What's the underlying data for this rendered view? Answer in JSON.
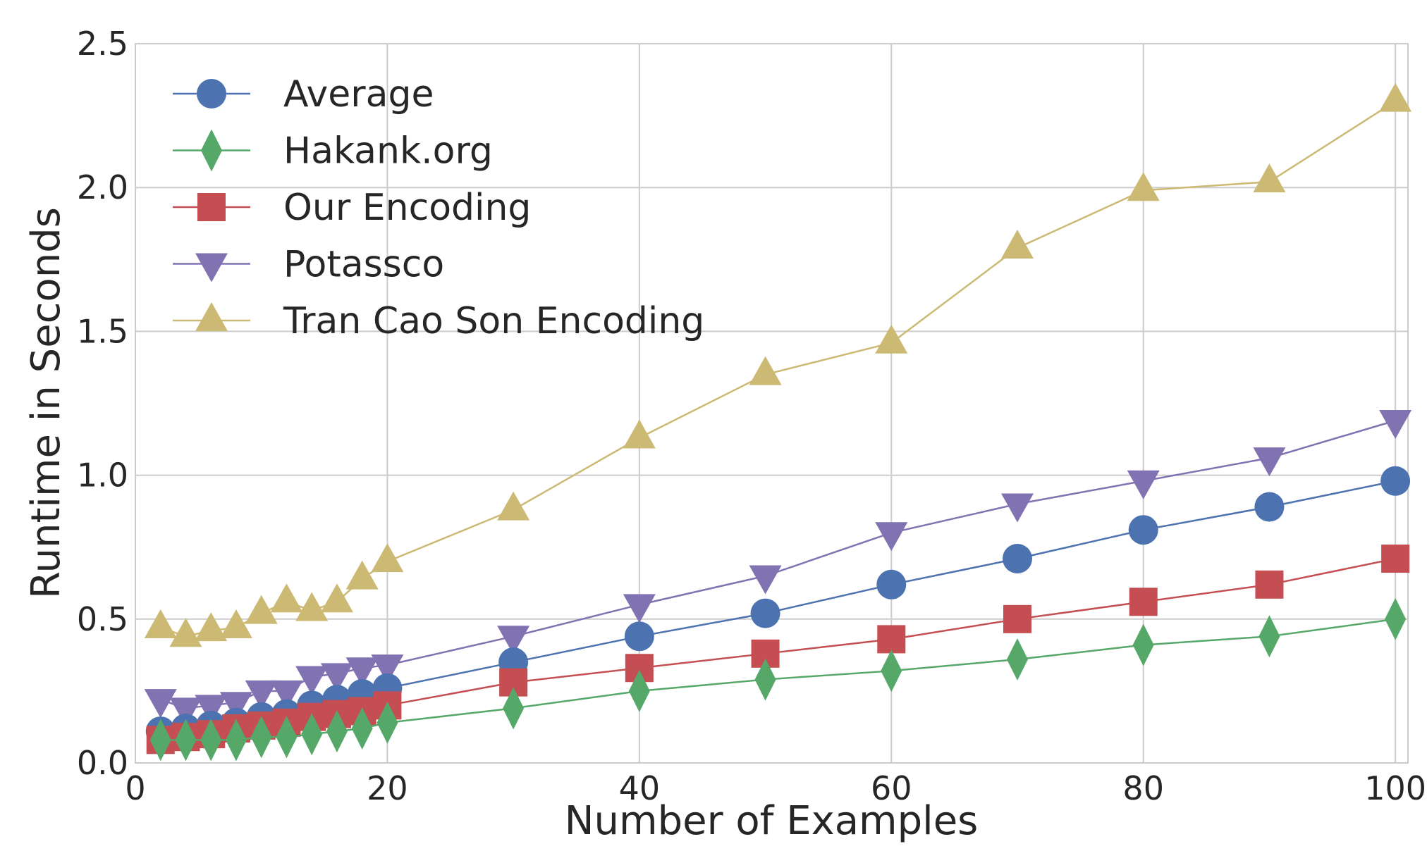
{
  "chart_data": {
    "type": "line",
    "title": "",
    "xlabel": "Number of Examples",
    "ylabel": "Runtime in Seconds",
    "xlim": [
      0,
      101
    ],
    "ylim": [
      0,
      2.5
    ],
    "xticks": [
      "0",
      "20",
      "40",
      "60",
      "80",
      "100"
    ],
    "xtick_values": [
      0,
      20,
      40,
      60,
      80,
      100
    ],
    "yticks": [
      "0.0",
      "0.5",
      "1.0",
      "1.5",
      "2.0",
      "2.5"
    ],
    "ytick_values": [
      0,
      0.5,
      1.0,
      1.5,
      2.0,
      2.5
    ],
    "grid": true,
    "legend_position": "top-left",
    "x": [
      2,
      4,
      6,
      8,
      10,
      12,
      14,
      16,
      18,
      20,
      30,
      40,
      50,
      60,
      70,
      80,
      90,
      100
    ],
    "series": [
      {
        "name": "Average",
        "marker": "circle",
        "color": "#4C72B0",
        "values": [
          0.11,
          0.12,
          0.13,
          0.14,
          0.16,
          0.17,
          0.2,
          0.22,
          0.24,
          0.26,
          0.35,
          0.44,
          0.52,
          0.62,
          0.71,
          0.81,
          0.89,
          0.98
        ]
      },
      {
        "name": "Hakank.org",
        "marker": "diamond",
        "color": "#55A868",
        "values": [
          0.08,
          0.08,
          0.08,
          0.08,
          0.09,
          0.09,
          0.1,
          0.11,
          0.12,
          0.14,
          0.19,
          0.25,
          0.29,
          0.32,
          0.36,
          0.41,
          0.44,
          0.5
        ]
      },
      {
        "name": "Our Encoding",
        "marker": "square",
        "color": "#C44E52",
        "values": [
          0.08,
          0.09,
          0.1,
          0.12,
          0.13,
          0.14,
          0.16,
          0.17,
          0.18,
          0.2,
          0.28,
          0.33,
          0.38,
          0.43,
          0.5,
          0.56,
          0.62,
          0.71
        ]
      },
      {
        "name": "Potassco",
        "marker": "triangle-down",
        "color": "#8172B2",
        "values": [
          0.22,
          0.19,
          0.2,
          0.21,
          0.25,
          0.25,
          0.3,
          0.31,
          0.33,
          0.34,
          0.44,
          0.55,
          0.65,
          0.8,
          0.9,
          0.98,
          1.06,
          1.19
        ]
      },
      {
        "name": "Tran Cao Son Encoding",
        "marker": "triangle-up",
        "color": "#CCB974",
        "values": [
          0.47,
          0.44,
          0.46,
          0.47,
          0.52,
          0.56,
          0.53,
          0.56,
          0.64,
          0.7,
          0.88,
          1.13,
          1.35,
          1.46,
          1.79,
          1.99,
          2.02,
          2.3
        ]
      }
    ]
  }
}
